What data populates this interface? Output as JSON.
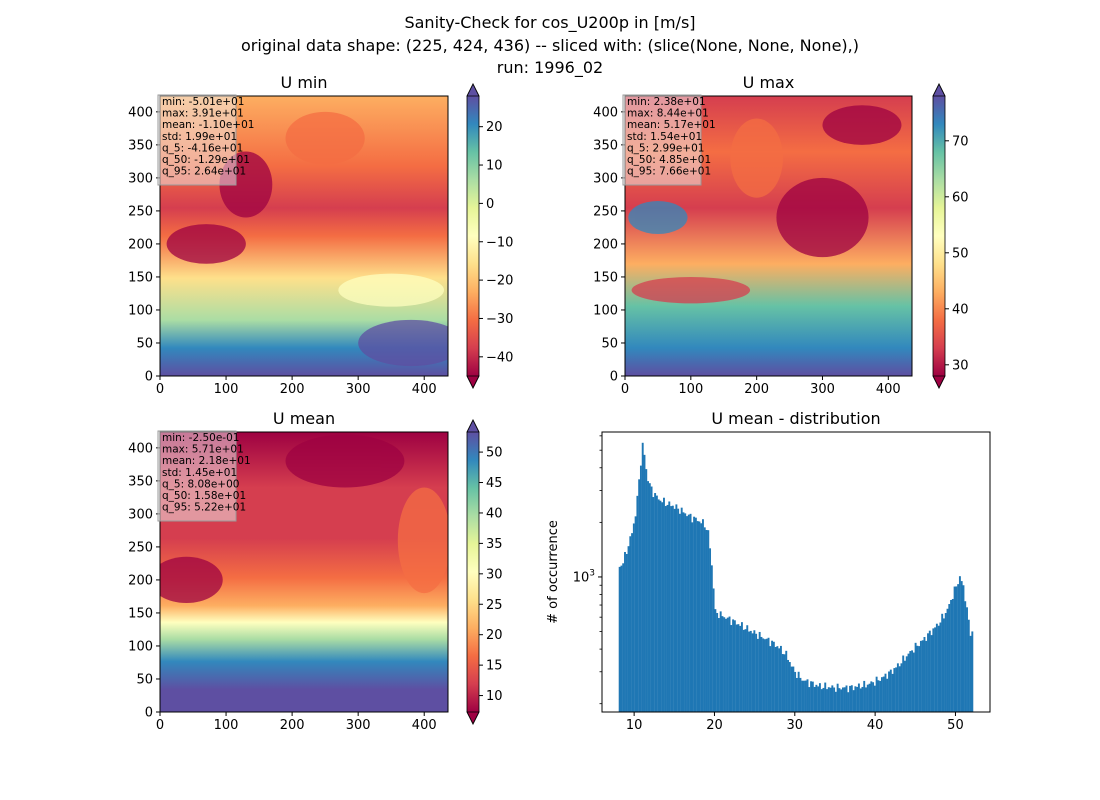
{
  "suptitle": {
    "line1": "Sanity-Check for cos_U200p in [m/s]",
    "line2": "original data shape: (225, 424, 436) -- sliced with: (slice(None, None, None),)",
    "line3": "run: 1996_02"
  },
  "chart_data": [
    {
      "type": "heatmap",
      "title": "U min",
      "xlim": [
        0,
        436
      ],
      "ylim": [
        0,
        424
      ],
      "xticks": [
        0,
        100,
        200,
        300,
        400
      ],
      "yticks": [
        0,
        50,
        100,
        150,
        200,
        250,
        300,
        350,
        400
      ],
      "colormap": "Spectral",
      "colorbar": {
        "range": [
          -45,
          28
        ],
        "ticks": [
          -40,
          -30,
          -20,
          -10,
          0,
          10,
          20
        ],
        "extend": "both"
      },
      "stats": [
        "min: -5.01e+01",
        "max: 3.91e+01",
        "mean: -1.10e+01",
        "std: 1.99e+01",
        "q_5: -4.16e+01",
        "q_50: -1.29e+01",
        "q_95: 2.64e+01"
      ]
    },
    {
      "type": "heatmap",
      "title": "U max",
      "xlim": [
        0,
        436
      ],
      "ylim": [
        0,
        424
      ],
      "xticks": [
        0,
        100,
        200,
        300,
        400
      ],
      "yticks": [
        0,
        50,
        100,
        150,
        200,
        250,
        300,
        350,
        400
      ],
      "colormap": "Spectral",
      "colorbar": {
        "range": [
          28,
          78
        ],
        "ticks": [
          30,
          40,
          50,
          60,
          70
        ],
        "extend": "both"
      },
      "stats": [
        "min: 2.38e+01",
        "max: 8.44e+01",
        "mean: 5.17e+01",
        "std: 1.54e+01",
        "q_5: 2.99e+01",
        "q_50: 4.85e+01",
        "q_95: 7.66e+01"
      ]
    },
    {
      "type": "heatmap",
      "title": "U mean",
      "xlim": [
        0,
        436
      ],
      "ylim": [
        0,
        424
      ],
      "xticks": [
        0,
        100,
        200,
        300,
        400
      ],
      "yticks": [
        0,
        50,
        100,
        150,
        200,
        250,
        300,
        350,
        400
      ],
      "colormap": "Spectral",
      "colorbar": {
        "range": [
          7.3,
          53.3
        ],
        "ticks": [
          10,
          15,
          20,
          25,
          30,
          35,
          40,
          45,
          50
        ],
        "extend": "both"
      },
      "stats": [
        "min: -2.50e-01",
        "max: 5.71e+01",
        "mean: 2.18e+01",
        "std: 1.45e+01",
        "q_5: 8.08e+00",
        "q_50: 1.58e+01",
        "q_95: 5.22e+01"
      ]
    },
    {
      "type": "bar",
      "title": "U mean - distribution",
      "xlabel": "",
      "ylabel": "# of occurrence",
      "xlim": [
        6,
        54.3
      ],
      "ylim": [
        180,
        6300
      ],
      "yscale": "log",
      "xticks": [
        10,
        20,
        30,
        40,
        50
      ],
      "ytick_label": "10^3",
      "ytick_value": 1000,
      "bar_color": "#1f77b4",
      "bin_edges_range": [
        8.08,
        52.2
      ],
      "profile": [
        [
          8.08,
          1120
        ],
        [
          8.6,
          1200
        ],
        [
          9.2,
          1450
        ],
        [
          9.8,
          1800
        ],
        [
          10.3,
          2400
        ],
        [
          10.7,
          3800
        ],
        [
          11.1,
          5500
        ],
        [
          11.6,
          3600
        ],
        [
          12.2,
          3000
        ],
        [
          13.0,
          2700
        ],
        [
          14.0,
          2550
        ],
        [
          15.0,
          2450
        ],
        [
          16.0,
          2300
        ],
        [
          17.0,
          2150
        ],
        [
          18.0,
          2050
        ],
        [
          18.8,
          1950
        ],
        [
          19.3,
          1700
        ],
        [
          19.8,
          1000
        ],
        [
          20.1,
          640
        ],
        [
          21.0,
          610
        ],
        [
          22.0,
          580
        ],
        [
          23.0,
          550
        ],
        [
          24.0,
          520
        ],
        [
          25.0,
          490
        ],
        [
          26.0,
          465
        ],
        [
          27.0,
          440
        ],
        [
          28.0,
          410
        ],
        [
          29.0,
          370
        ],
        [
          29.5,
          330
        ],
        [
          30.0,
          300
        ],
        [
          31.0,
          270
        ],
        [
          32.0,
          260
        ],
        [
          33.0,
          250
        ],
        [
          34.0,
          248
        ],
        [
          35.0,
          245
        ],
        [
          36.0,
          245
        ],
        [
          37.0,
          245
        ],
        [
          38.0,
          250
        ],
        [
          39.0,
          255
        ],
        [
          40.0,
          265
        ],
        [
          41.0,
          280
        ],
        [
          42.0,
          300
        ],
        [
          43.0,
          330
        ],
        [
          44.0,
          370
        ],
        [
          45.0,
          410
        ],
        [
          46.0,
          450
        ],
        [
          47.0,
          500
        ],
        [
          48.0,
          560
        ],
        [
          49.0,
          660
        ],
        [
          49.7,
          800
        ],
        [
          50.3,
          940
        ],
        [
          50.6,
          1000
        ],
        [
          51.0,
          880
        ],
        [
          51.4,
          680
        ],
        [
          51.8,
          500
        ],
        [
          52.2,
          490
        ]
      ]
    }
  ]
}
